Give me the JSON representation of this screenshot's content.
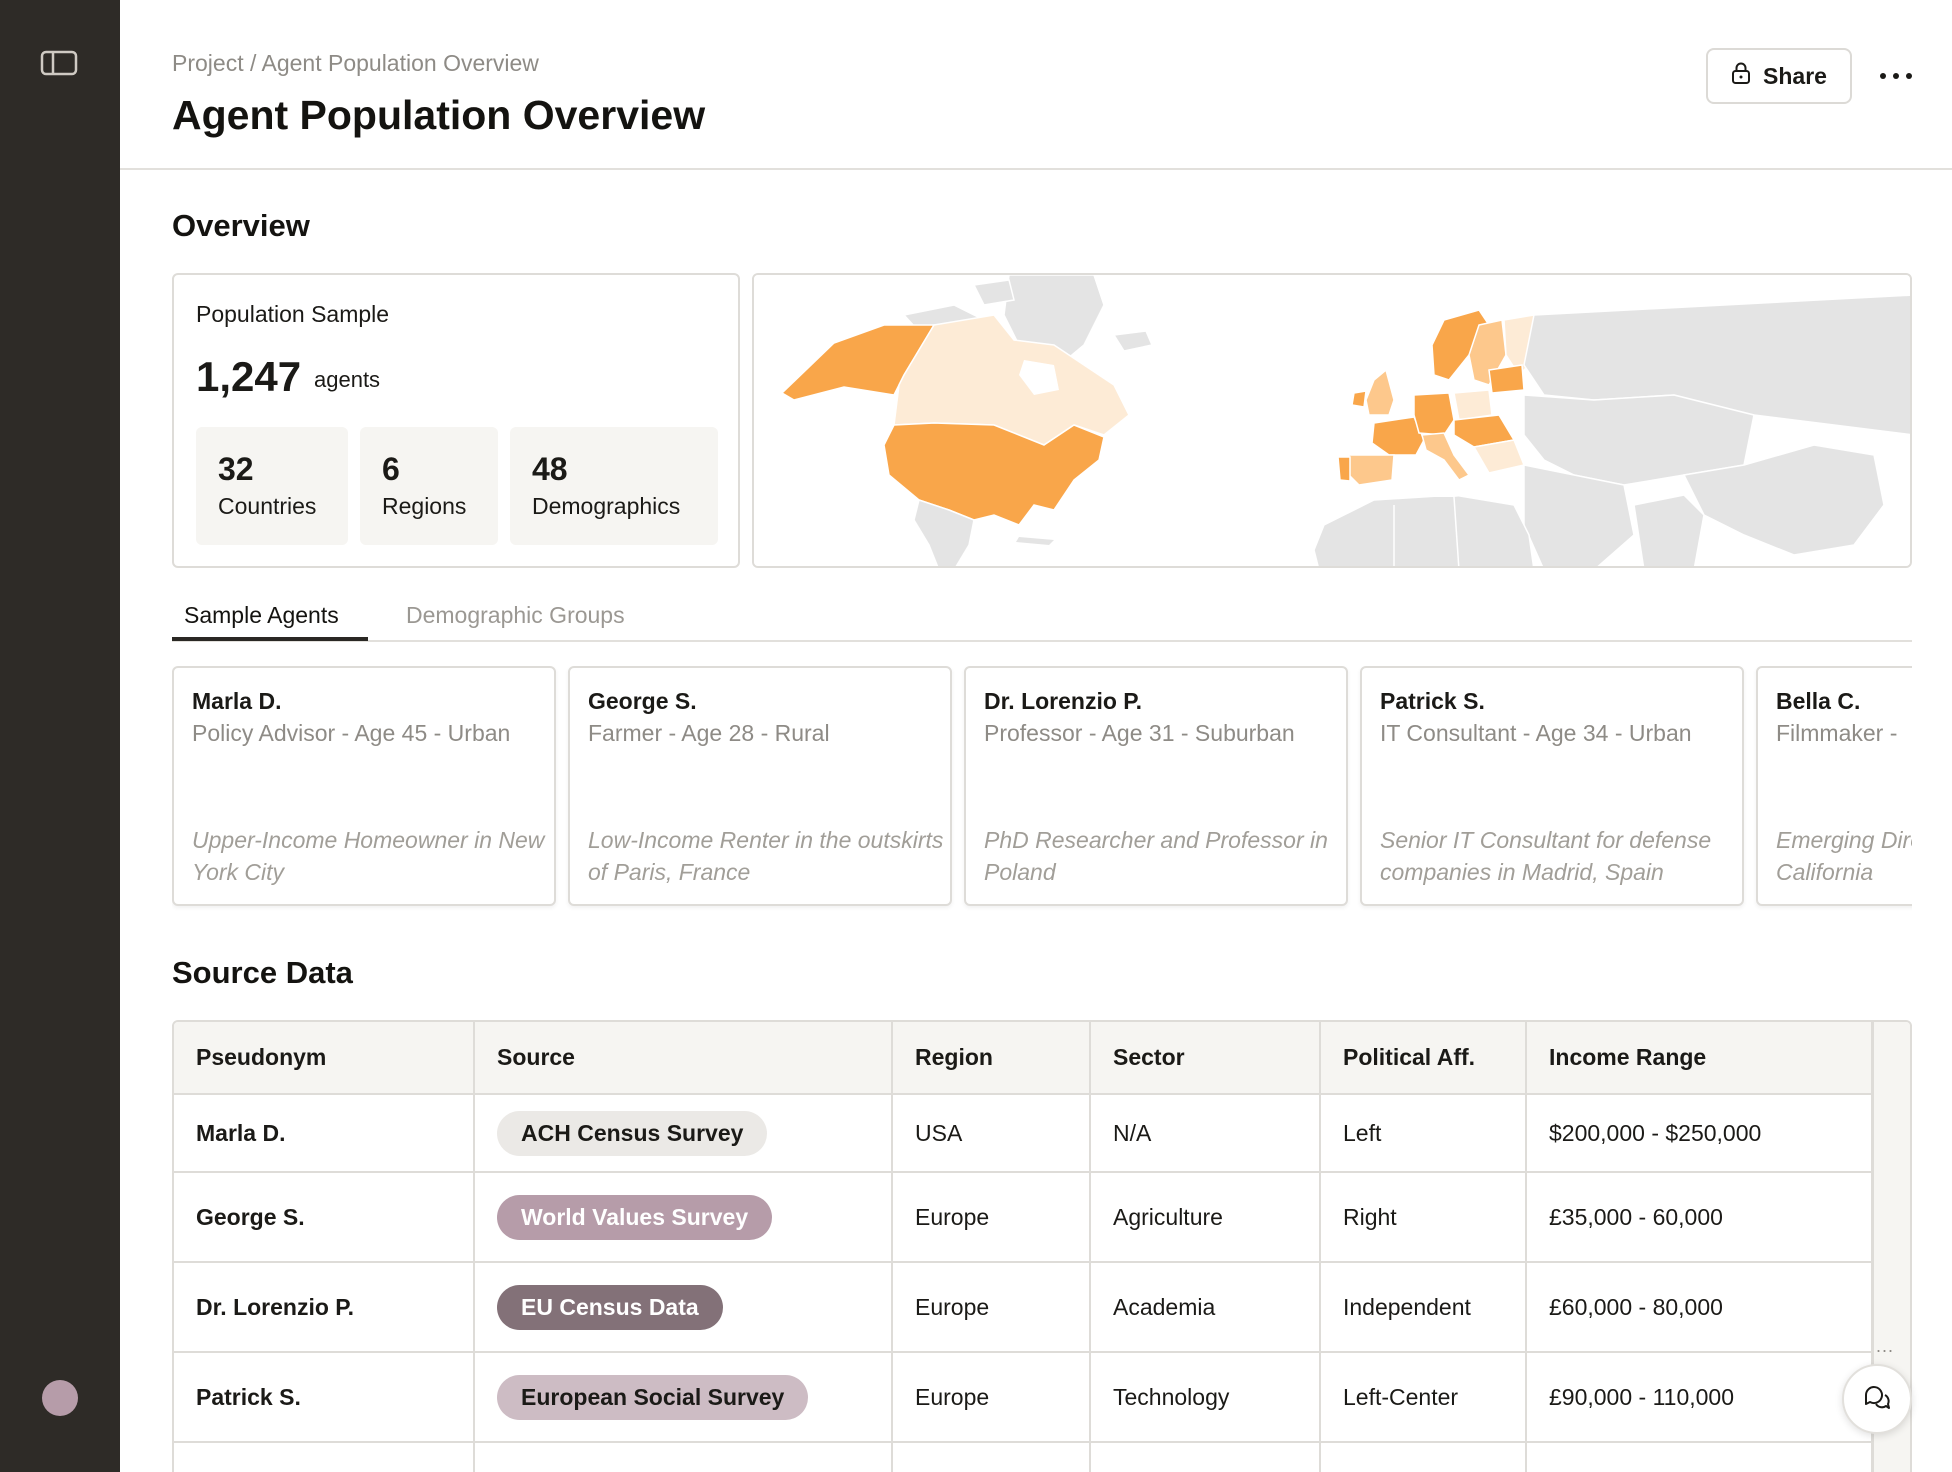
{
  "header": {
    "breadcrumb": "Project / Agent Population Overview",
    "title": "Agent Population Overview",
    "share_label": "Share"
  },
  "overview": {
    "heading": "Overview",
    "population_label": "Population Sample",
    "population_count": "1,247",
    "population_unit": "agents",
    "stats": [
      {
        "value": "32",
        "label": "Countries"
      },
      {
        "value": "6",
        "label": "Regions"
      },
      {
        "value": "48",
        "label": "Demographics"
      }
    ],
    "map": {
      "highlight_color": "#f9a64a",
      "light_color": "#fdebd6",
      "neutral_color": "#e4e4e4"
    }
  },
  "tabs": [
    {
      "label": "Sample Agents",
      "active": true
    },
    {
      "label": "Demographic Groups",
      "active": false
    }
  ],
  "agents": [
    {
      "name": "Marla D.",
      "meta": "Policy Advisor  -  Age 45  -  Urban",
      "desc": "Upper-Income Homeowner in New York City"
    },
    {
      "name": "George S.",
      "meta": "Farmer -  Age 28  -  Rural",
      "desc": "Low-Income Renter in the outskirts of Paris, France"
    },
    {
      "name": "Dr. Lorenzio P.",
      "meta": "Professor -  Age 31  -  Suburban",
      "desc": "PhD Researcher and Professor in Poland"
    },
    {
      "name": "Patrick S.",
      "meta": "IT Consultant -  Age 34  -  Urban",
      "desc": "Senior IT Consultant for defense companies in Madrid, Spain"
    },
    {
      "name": "Bella C.",
      "meta": "Filmmaker  -",
      "desc": "Emerging Director in Los Angeles, California"
    }
  ],
  "source": {
    "heading": "Source Data",
    "columns": [
      "Pseudonym",
      "Source",
      "Region",
      "Sector",
      "Political Aff.",
      "Income Range"
    ],
    "rows": [
      {
        "pseudonym": "Marla D.",
        "source": "ACH Census Survey",
        "source_style": "light",
        "region": "USA",
        "sector": "N/A",
        "political": "Left",
        "income": "$200,000 - $250,000"
      },
      {
        "pseudonym": "George S.",
        "source": "World Values Survey",
        "source_style": "mauve",
        "region": "Europe",
        "sector": "Agriculture",
        "political": "Right",
        "income": "£35,000 - 60,000"
      },
      {
        "pseudonym": "Dr. Lorenzio P.",
        "source": "EU Census Data",
        "source_style": "dark-mauve",
        "region": "Europe",
        "sector": "Academia",
        "political": "Independent",
        "income": "£60,000 - 80,000"
      },
      {
        "pseudonym": "Patrick S.",
        "source": "European Social Survey",
        "source_style": "lilac",
        "region": "Europe",
        "sector": "Technology",
        "political": "Left-Center",
        "income": "£90,000 - 110,000"
      }
    ],
    "rail_dots": "..."
  }
}
